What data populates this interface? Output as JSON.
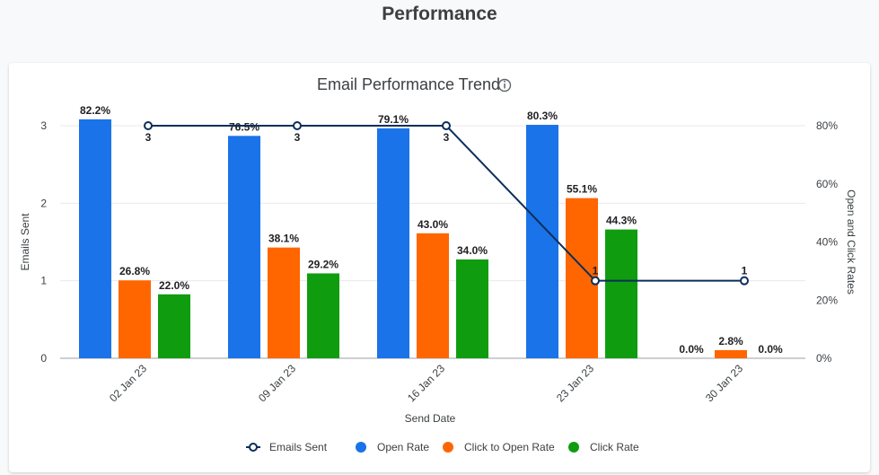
{
  "page": {
    "title": "Performance"
  },
  "colors": {
    "emails_sent": "#0b2e5b",
    "open_rate": "#1a73e8",
    "click_to_open_rate": "#ff6600",
    "click_rate": "#0f9d0f",
    "grid": "#e8eaed"
  },
  "chart_data": {
    "type": "bar",
    "title": "Email Performance Trend",
    "title_icon": "info-icon",
    "xlabel": "Send Date",
    "ylabel_left": "Emails Sent",
    "ylabel_right": "Open and Click Rates",
    "categories": [
      "02 Jan 23",
      "09 Jan 23",
      "16 Jan 23",
      "23 Jan 23",
      "30 Jan 23"
    ],
    "ylim_left": [
      0,
      3
    ],
    "yticks_left": [
      "0",
      "1",
      "2",
      "3"
    ],
    "ylim_right": [
      0,
      80
    ],
    "yticks_right": [
      "0%",
      "20%",
      "40%",
      "60%",
      "80%"
    ],
    "series": [
      {
        "name": "Open Rate",
        "axis": "right",
        "kind": "bar",
        "values": [
          82.2,
          76.5,
          79.1,
          80.3,
          0.0
        ],
        "labels": [
          "82.2%",
          "76.5%",
          "79.1%",
          "80.3%",
          "0.0%"
        ]
      },
      {
        "name": "Click to Open Rate",
        "axis": "right",
        "kind": "bar",
        "values": [
          26.8,
          38.1,
          43.0,
          55.1,
          2.8
        ],
        "labels": [
          "26.8%",
          "38.1%",
          "43.0%",
          "55.1%",
          "2.8%"
        ]
      },
      {
        "name": "Click Rate",
        "axis": "right",
        "kind": "bar",
        "values": [
          22.0,
          29.2,
          34.0,
          44.3,
          0.0
        ],
        "labels": [
          "22.0%",
          "29.2%",
          "34.0%",
          "44.3%",
          "0.0%"
        ]
      },
      {
        "name": "Emails Sent",
        "axis": "left",
        "kind": "line",
        "values": [
          3,
          3,
          3,
          1,
          1
        ],
        "labels": [
          "3",
          "3",
          "3",
          "1",
          "1"
        ]
      }
    ],
    "legend": [
      "Emails Sent",
      "Open Rate",
      "Click to Open Rate",
      "Click Rate"
    ],
    "legend_position": "bottom",
    "grid": true
  }
}
